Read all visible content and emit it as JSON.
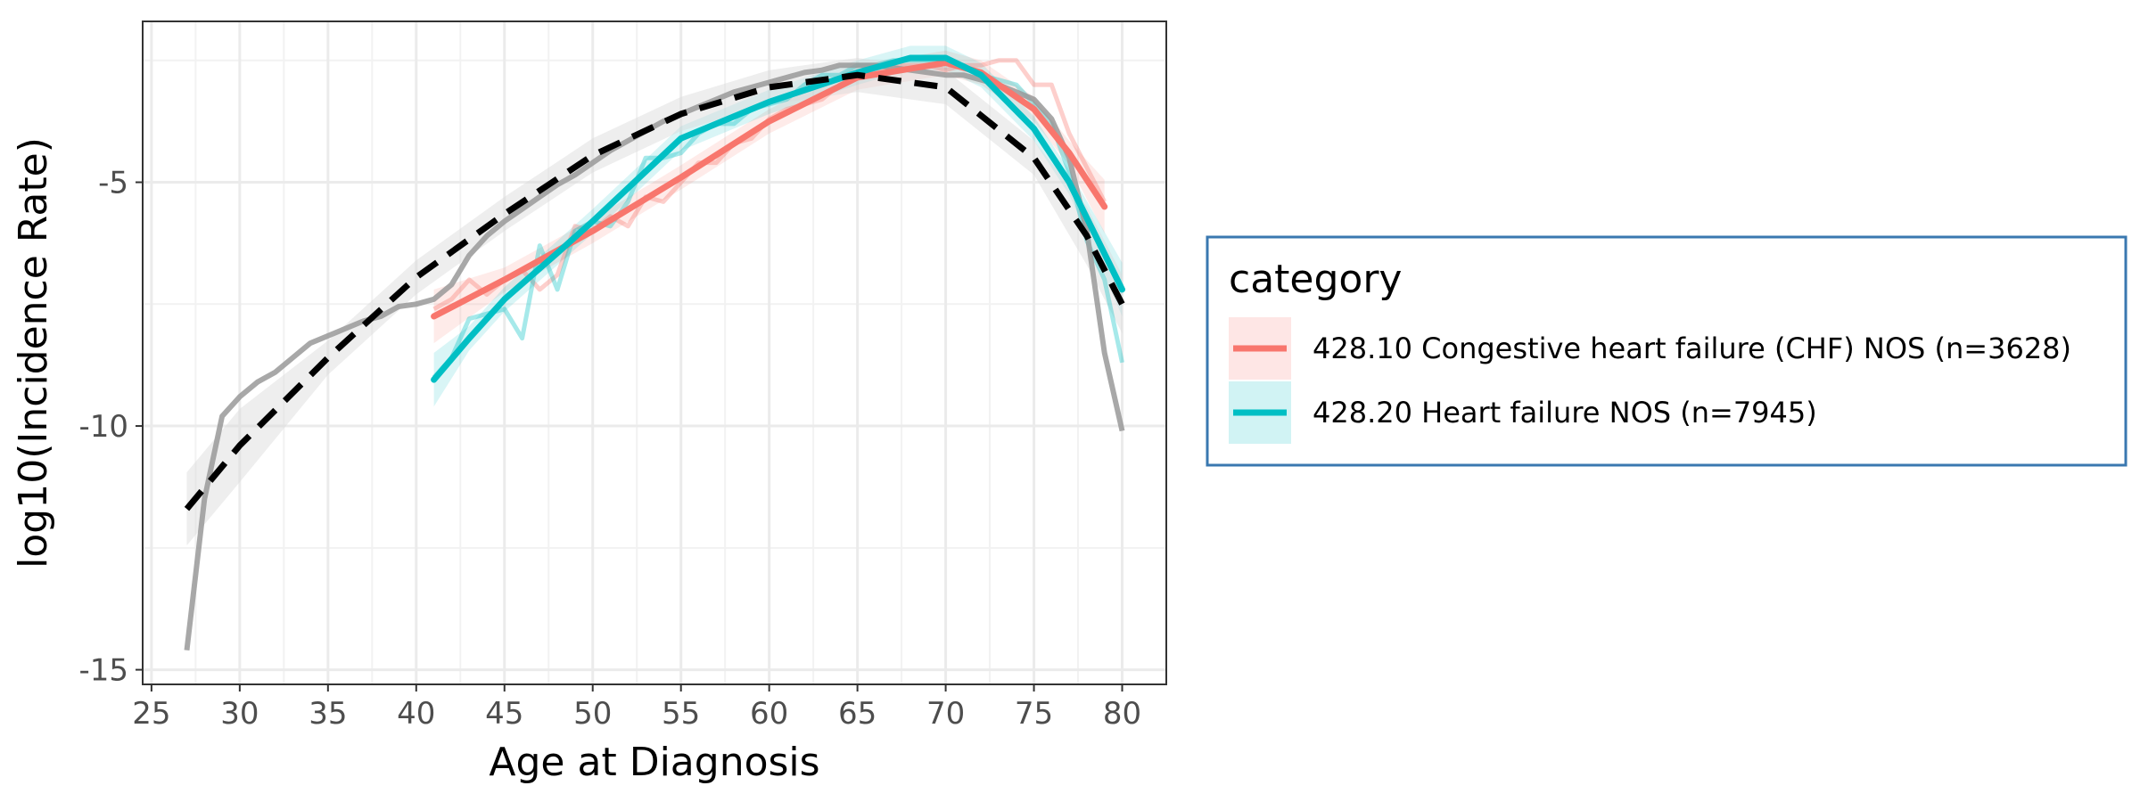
{
  "chart_data": {
    "type": "line",
    "title": "",
    "xlabel": "Age at Diagnosis",
    "ylabel": "log10(Incidence Rate)",
    "xlim": [
      24.5,
      82.5
    ],
    "ylim": [
      -15.3,
      -1.7
    ],
    "x_ticks": [
      25,
      30,
      35,
      40,
      45,
      50,
      55,
      60,
      65,
      70,
      75,
      80
    ],
    "y_ticks": [
      -5,
      -10,
      -15
    ],
    "y_tick_labels": [
      "-5",
      "-10",
      "-15"
    ],
    "grid": true,
    "legend": {
      "title": "category",
      "position": "right",
      "entries": [
        {
          "label": "428.10 Congestive heart failure (CHF) NOS (n=3628)",
          "color": "#F8766D"
        },
        {
          "label": "428.20 Heart failure NOS (n=7945)",
          "color": "#00BFC4"
        }
      ]
    },
    "colors": {
      "chf": "#F8766D",
      "hf": "#00BFC4",
      "reference_raw": "#999999",
      "reference_smooth": "#000000",
      "ribbon_gray": "#d9d9d9"
    },
    "series": [
      {
        "name": "428.10 Congestive heart failure (CHF) NOS (n=3628)",
        "kind": "raw",
        "color": "#F8766D",
        "x": [
          41,
          42,
          43,
          44,
          45,
          46,
          47,
          48,
          49,
          50,
          51,
          52,
          53,
          54,
          55,
          56,
          57,
          58,
          59,
          60,
          61,
          62,
          63,
          64,
          65,
          66,
          67,
          68,
          69,
          70,
          71,
          72,
          73,
          74,
          75,
          76,
          77,
          78,
          79
        ],
        "y": [
          -7.6,
          -7.4,
          -7.0,
          -7.3,
          -7.0,
          -6.8,
          -7.2,
          -6.9,
          -5.9,
          -6.0,
          -5.7,
          -5.9,
          -5.3,
          -5.4,
          -5.0,
          -4.6,
          -4.6,
          -4.2,
          -4.1,
          -3.7,
          -3.5,
          -3.4,
          -3.3,
          -3.0,
          -2.8,
          -2.7,
          -2.6,
          -2.6,
          -2.6,
          -2.7,
          -2.6,
          -2.6,
          -2.5,
          -2.5,
          -3.0,
          -3.0,
          -4.0,
          -4.7,
          -5.4
        ]
      },
      {
        "name": "428.20 Heart failure NOS (n=7945)",
        "kind": "raw",
        "color": "#00BFC4",
        "x": [
          41,
          42,
          43,
          44,
          45,
          46,
          47,
          48,
          49,
          50,
          51,
          52,
          53,
          54,
          55,
          56,
          57,
          58,
          59,
          60,
          61,
          62,
          63,
          64,
          65,
          66,
          67,
          68,
          69,
          70,
          71,
          72,
          73,
          74,
          75,
          76,
          77,
          78,
          79,
          80
        ],
        "y": [
          -9.0,
          -8.6,
          -7.8,
          -7.7,
          -7.6,
          -8.2,
          -6.3,
          -7.2,
          -6.0,
          -5.8,
          -5.9,
          -5.4,
          -4.5,
          -4.5,
          -4.4,
          -4.0,
          -3.8,
          -3.8,
          -3.5,
          -3.4,
          -3.3,
          -3.0,
          -2.8,
          -2.8,
          -2.6,
          -2.6,
          -2.5,
          -2.5,
          -2.5,
          -2.5,
          -2.6,
          -2.8,
          -2.9,
          -3.0,
          -3.4,
          -3.8,
          -4.8,
          -6.2,
          -7.0,
          -8.7
        ]
      },
      {
        "name": "428.10 Congestive heart failure (CHF) NOS (n=3628)",
        "kind": "smooth",
        "color": "#F8766D",
        "x": [
          41,
          45,
          50,
          55,
          60,
          65,
          70,
          72,
          75,
          77,
          79
        ],
        "y": [
          -7.75,
          -7.0,
          -6.0,
          -4.9,
          -3.75,
          -2.85,
          -2.55,
          -2.75,
          -3.5,
          -4.4,
          -5.5
        ]
      },
      {
        "name": "428.20 Heart failure NOS (n=7945)",
        "kind": "smooth",
        "color": "#00BFC4",
        "x": [
          41,
          43,
          45,
          48,
          50,
          55,
          60,
          65,
          68,
          70,
          72,
          75,
          77,
          80
        ],
        "y": [
          -9.05,
          -8.2,
          -7.4,
          -6.45,
          -5.8,
          -4.1,
          -3.35,
          -2.75,
          -2.45,
          -2.45,
          -2.8,
          -3.9,
          -5.0,
          -7.2
        ]
      },
      {
        "name": "",
        "kind": "reference-raw",
        "color": "#999999",
        "x": [
          27,
          28,
          29,
          30,
          31,
          32,
          33,
          34,
          35,
          36,
          37,
          38,
          39,
          40,
          41,
          42,
          43,
          44,
          45,
          46,
          47,
          48,
          49,
          50,
          51,
          52,
          53,
          54,
          55,
          56,
          57,
          58,
          59,
          60,
          61,
          62,
          63,
          64,
          65,
          66,
          67,
          68,
          69,
          70,
          71,
          72,
          73,
          74,
          75,
          76,
          77,
          78,
          79,
          80
        ],
        "y": [
          -14.6,
          -11.5,
          -9.8,
          -9.4,
          -9.1,
          -8.9,
          -8.6,
          -8.3,
          -8.15,
          -8.0,
          -7.85,
          -7.75,
          -7.55,
          -7.5,
          -7.4,
          -7.1,
          -6.5,
          -6.1,
          -5.8,
          -5.55,
          -5.3,
          -5.05,
          -4.85,
          -4.6,
          -4.35,
          -4.15,
          -3.95,
          -3.75,
          -3.6,
          -3.45,
          -3.3,
          -3.15,
          -3.05,
          -2.95,
          -2.85,
          -2.75,
          -2.7,
          -2.6,
          -2.6,
          -2.6,
          -2.65,
          -2.7,
          -2.75,
          -2.8,
          -2.8,
          -2.9,
          -3.0,
          -3.15,
          -3.3,
          -3.7,
          -4.5,
          -6.0,
          -8.5,
          -10.1
        ]
      },
      {
        "name": "",
        "kind": "reference-smooth",
        "color": "#000000",
        "x": [
          27,
          30,
          35,
          40,
          45,
          50,
          55,
          60,
          65,
          70,
          75,
          78,
          80
        ],
        "y": [
          -11.7,
          -10.4,
          -8.6,
          -6.95,
          -5.65,
          -4.45,
          -3.6,
          -3.05,
          -2.8,
          -3.05,
          -4.5,
          -6.1,
          -7.5
        ]
      }
    ]
  }
}
